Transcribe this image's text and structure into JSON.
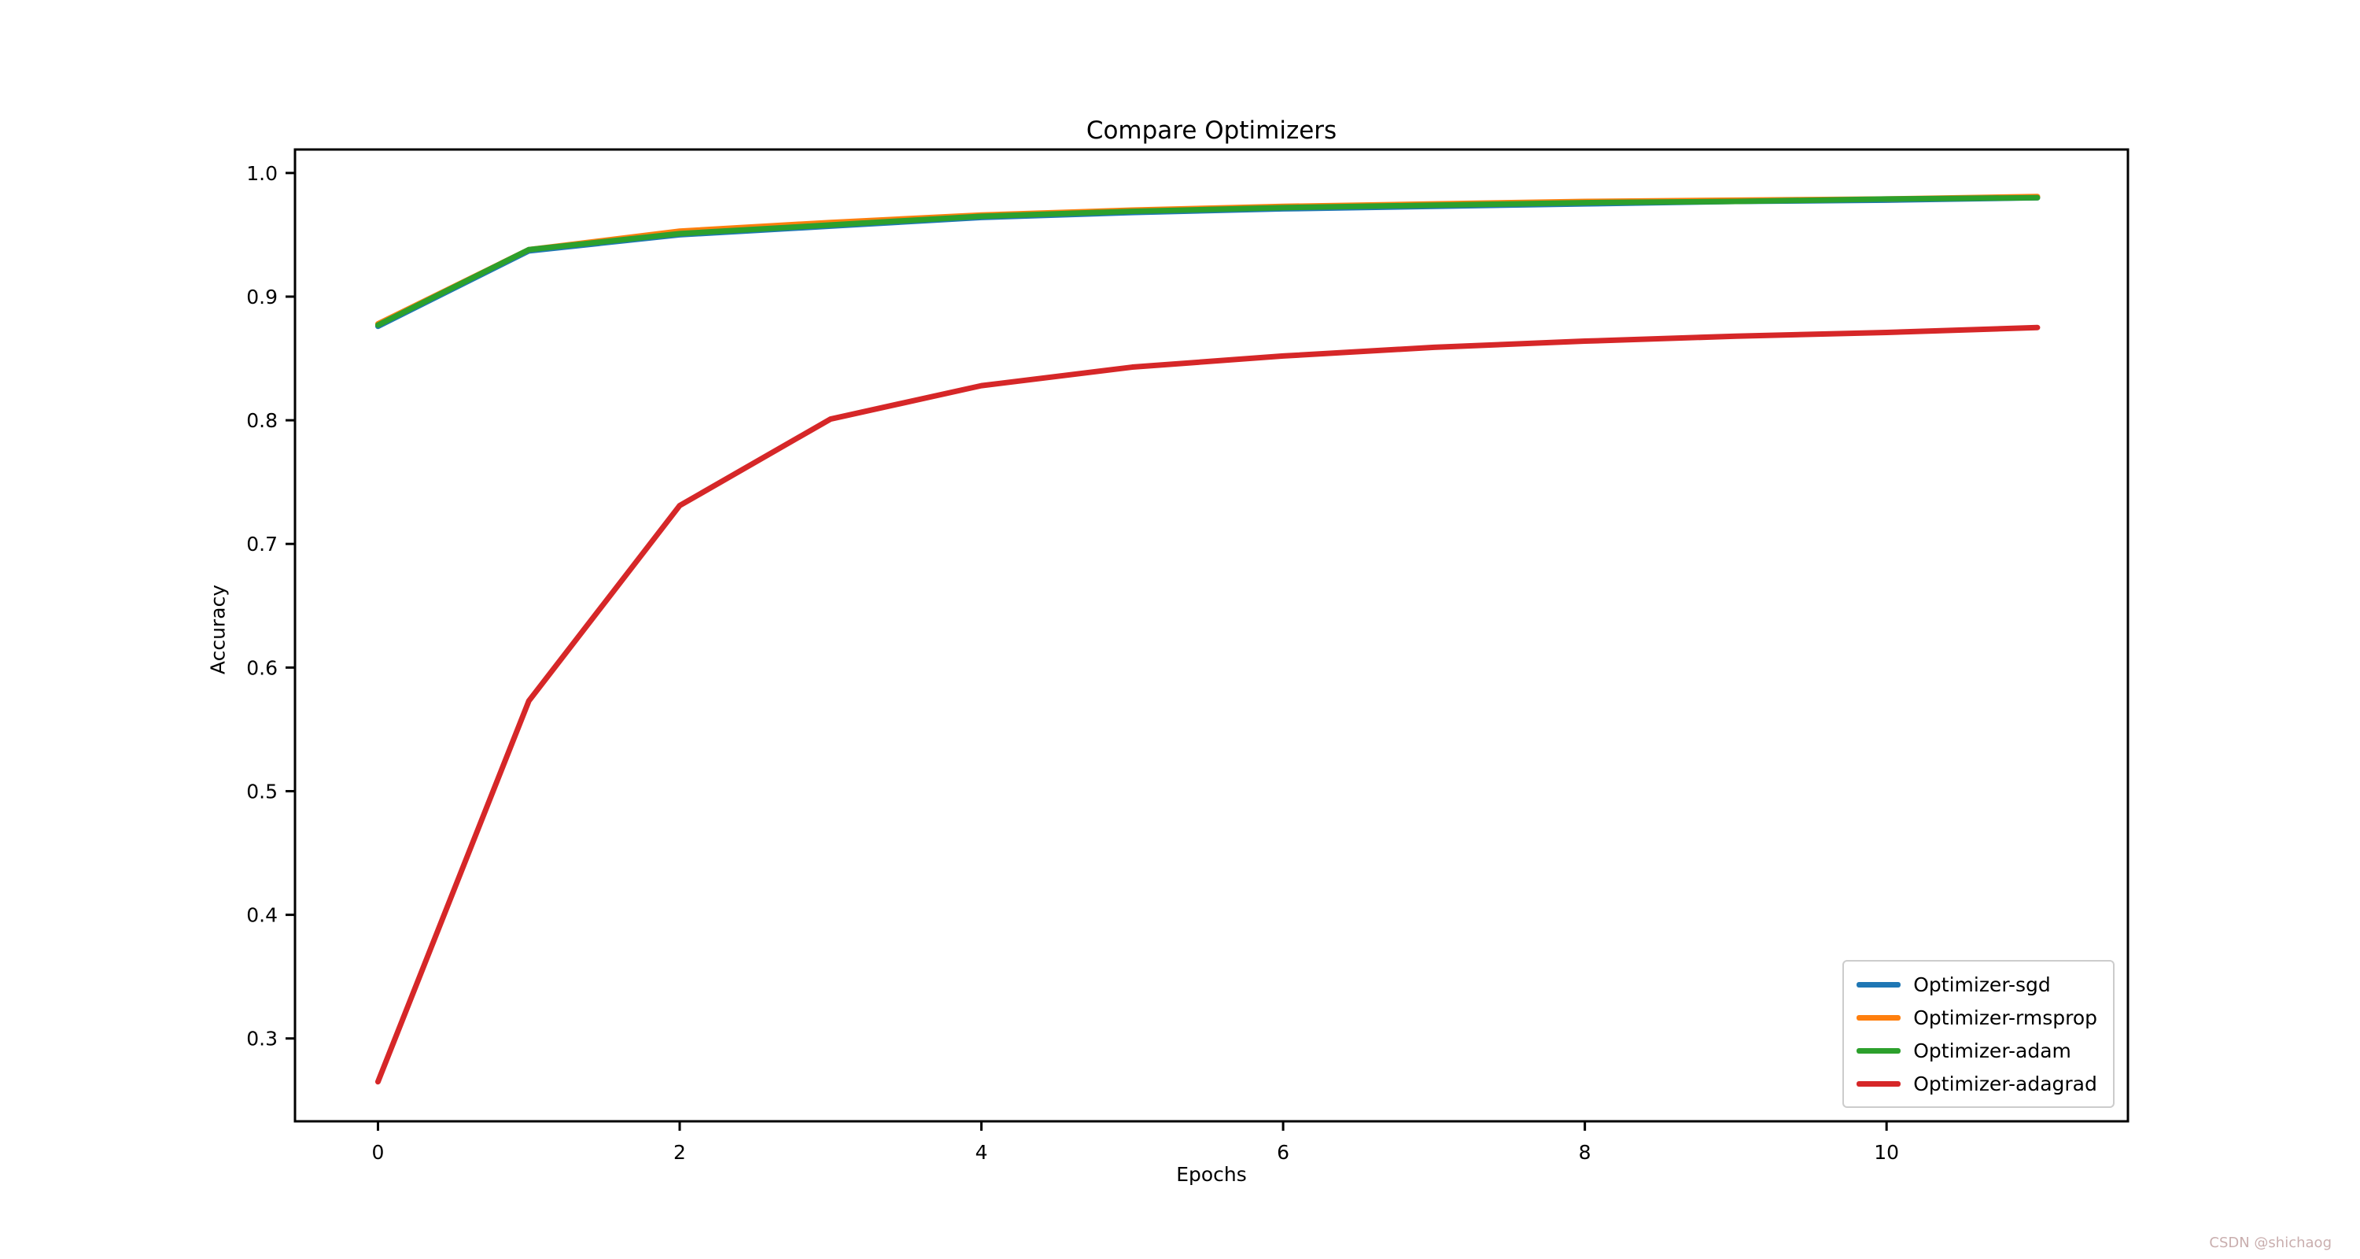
{
  "figure": {
    "title": "Compare Optimizers",
    "xlabel": "Epochs",
    "ylabel": "Accuracy",
    "watermark": "CSDN @shichaog",
    "background_color": "#ffffff",
    "frame_color": "#000000",
    "legend_border_color": "#cccccc"
  },
  "chart_data": {
    "type": "line",
    "title": "Compare Optimizers",
    "xlabel": "Epochs",
    "ylabel": "Accuracy",
    "grid": false,
    "legend_position": "lower right",
    "x": [
      0,
      1,
      2,
      3,
      4,
      5,
      6,
      7,
      8,
      9,
      10,
      11
    ],
    "xlim": [
      -0.55,
      11.6
    ],
    "ylim": [
      0.233,
      1.019
    ],
    "xticks": [
      0,
      2,
      4,
      6,
      8,
      10
    ],
    "yticks": [
      0.3,
      0.4,
      0.5,
      0.6,
      0.7,
      0.8,
      0.9,
      1.0
    ],
    "series": [
      {
        "name": "Optimizer-sgd",
        "color": "#1f77b4",
        "values": [
          0.876,
          0.937,
          0.95,
          0.957,
          0.964,
          0.968,
          0.971,
          0.973,
          0.975,
          0.977,
          0.978,
          0.98
        ]
      },
      {
        "name": "Optimizer-rmsprop",
        "color": "#ff7f0e",
        "values": [
          0.878,
          0.938,
          0.953,
          0.96,
          0.966,
          0.97,
          0.973,
          0.975,
          0.977,
          0.978,
          0.979,
          0.981
        ]
      },
      {
        "name": "Optimizer-adam",
        "color": "#2ca02c",
        "values": [
          0.877,
          0.938,
          0.951,
          0.958,
          0.965,
          0.969,
          0.972,
          0.974,
          0.976,
          0.977,
          0.979,
          0.98
        ]
      },
      {
        "name": "Optimizer-adagrad",
        "color": "#d62728",
        "values": [
          0.265,
          0.573,
          0.731,
          0.801,
          0.828,
          0.843,
          0.852,
          0.859,
          0.864,
          0.868,
          0.871,
          0.875
        ]
      }
    ]
  }
}
